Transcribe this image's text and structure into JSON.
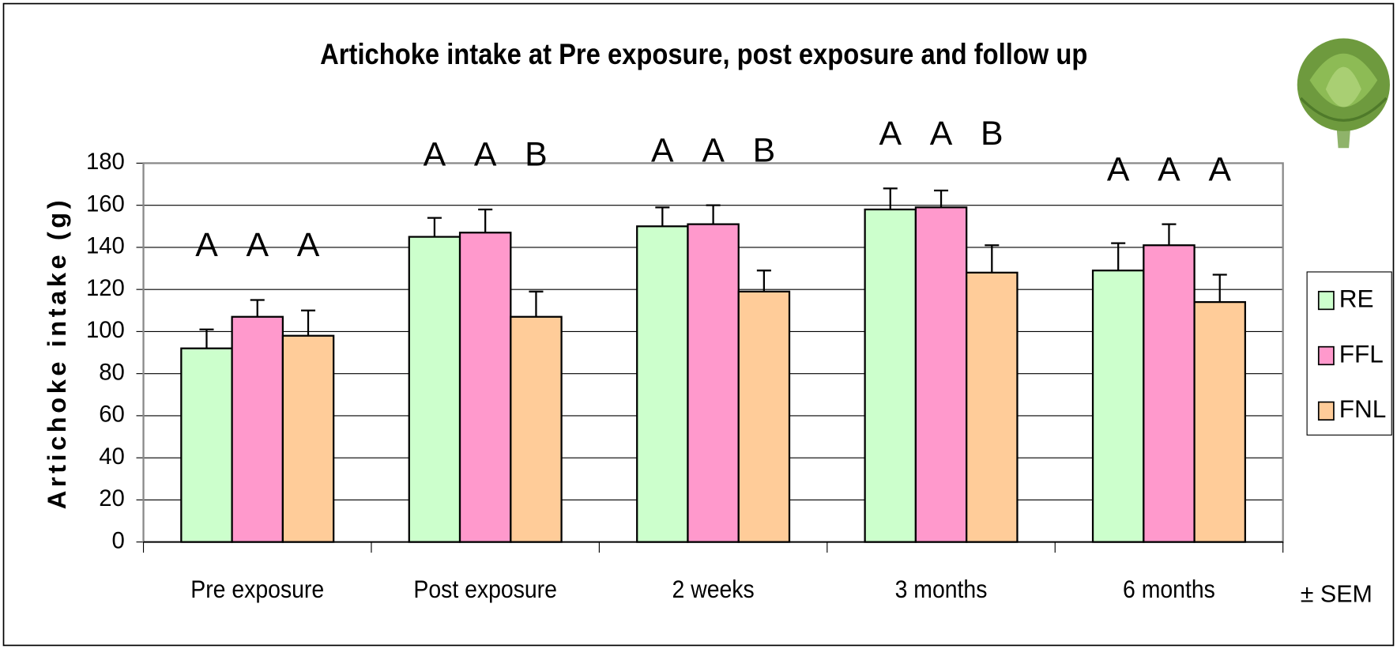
{
  "chart_data": {
    "type": "bar",
    "title": "Artichoke intake at Pre exposure, post exposure and follow up",
    "y_label": "Artichoke intake (g)",
    "note": "± SEM",
    "categories": [
      "Pre exposure",
      "Post exposure",
      "2 weeks",
      "3 months",
      "6 months"
    ],
    "series": [
      {
        "name": "RE",
        "color": "#ccffcc",
        "values": [
          92,
          145,
          150,
          158,
          129
        ],
        "errors": [
          9,
          9,
          9,
          10,
          13
        ],
        "letters": [
          "A",
          "A",
          "A",
          "A",
          "A"
        ]
      },
      {
        "name": "FFL",
        "color": "#ff99cc",
        "values": [
          107,
          147,
          151,
          159,
          141
        ],
        "errors": [
          8,
          11,
          9,
          8,
          10
        ],
        "letters": [
          "A",
          "A",
          "A",
          "A",
          "A"
        ]
      },
      {
        "name": "FNL",
        "color": "#ffcc99",
        "values": [
          98,
          107,
          119,
          128,
          114
        ],
        "errors": [
          12,
          12,
          10,
          13,
          13
        ],
        "letters": [
          "A",
          "B",
          "B",
          "B",
          "A"
        ]
      }
    ],
    "ylim": [
      0,
      180
    ],
    "yticks": [
      0,
      20,
      40,
      60,
      80,
      100,
      120,
      140,
      160,
      180
    ],
    "grid": true,
    "legend": "right"
  }
}
